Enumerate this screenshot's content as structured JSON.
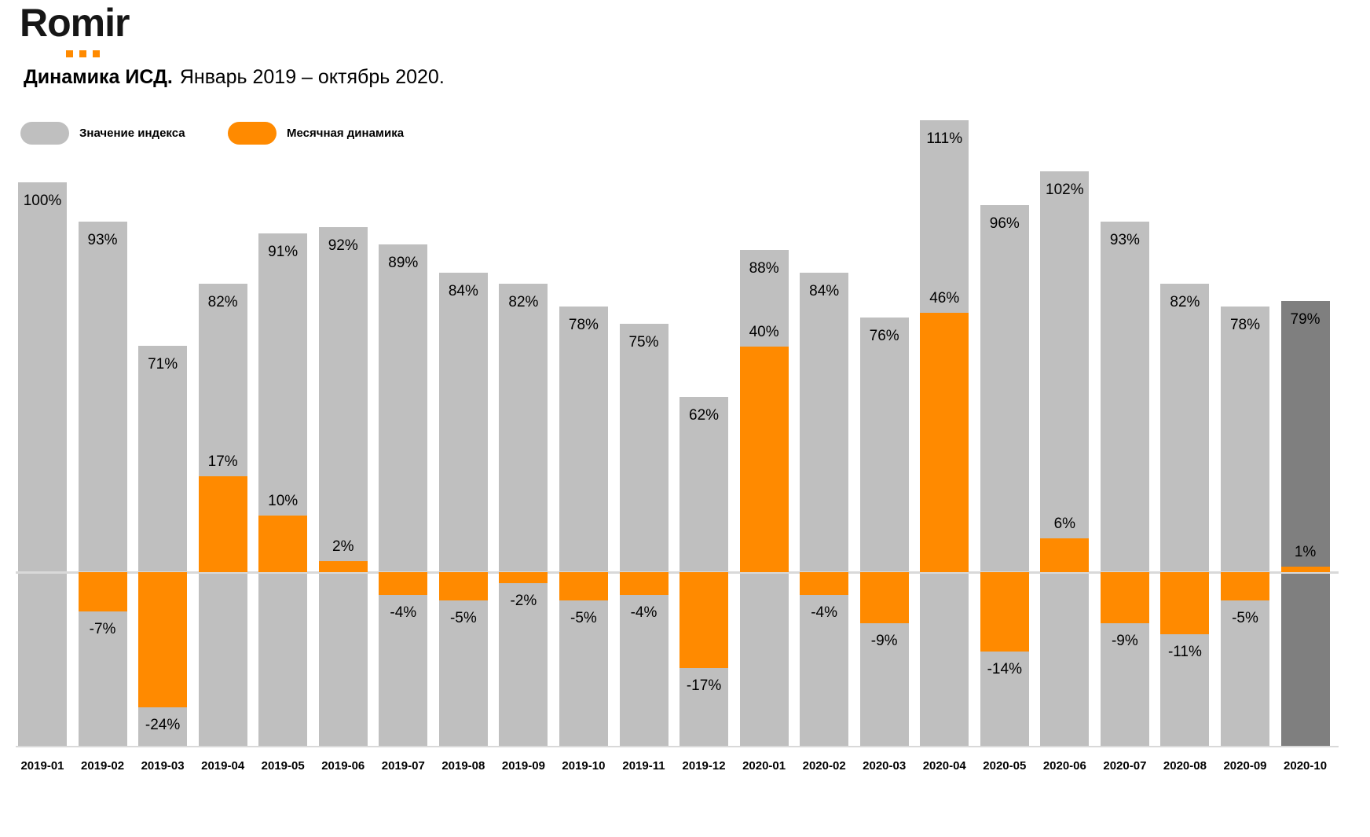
{
  "logo": {
    "text": "Romir"
  },
  "title": {
    "bold": "Динамика ИСД.",
    "regular": "Январь 2019 – октябрь 2020."
  },
  "legend": [
    {
      "label": "Значение индекса",
      "color": "#BFBFBF"
    },
    {
      "label": "Месячная динамика",
      "color": "#FF8A00"
    }
  ],
  "colors": {
    "bar_gray": "#BFBFBF",
    "bar_dark_highlight": "#7F7F7F",
    "bar_orange": "#FF8A00",
    "reference_line": "#D9D9D9",
    "label_text": "#000000"
  },
  "chart_data": {
    "type": "bar",
    "title": "Динамика ИСД. Январь 2019 – октябрь 2020.",
    "legend_position": "top-left",
    "grid": false,
    "y_axis_visible": false,
    "categories": [
      "2019-01",
      "2019-02",
      "2019-03",
      "2019-04",
      "2019-05",
      "2019-06",
      "2019-07",
      "2019-08",
      "2019-09",
      "2019-10",
      "2019-11",
      "2019-12",
      "2020-01",
      "2020-02",
      "2020-03",
      "2020-04",
      "2020-05",
      "2020-06",
      "2020-07",
      "2020-08",
      "2020-09",
      "2020-10"
    ],
    "series": [
      {
        "name": "Значение индекса",
        "unit": "%",
        "values": [
          100,
          93,
          71,
          82,
          91,
          92,
          89,
          84,
          82,
          78,
          75,
          62,
          88,
          84,
          76,
          111,
          96,
          102,
          93,
          82,
          78,
          79
        ],
        "labels": [
          "100%",
          "93%",
          "71%",
          "82%",
          "91%",
          "92%",
          "89%",
          "84%",
          "82%",
          "78%",
          "75%",
          "62%",
          "88%",
          "84%",
          "76%",
          "111%",
          "96%",
          "102%",
          "93%",
          "82%",
          "78%",
          "79%"
        ]
      },
      {
        "name": "Месячная динамика",
        "unit": "%",
        "values": [
          null,
          -7,
          -24,
          17,
          10,
          2,
          -4,
          -5,
          -2,
          -5,
          -4,
          -17,
          40,
          -4,
          -9,
          46,
          -14,
          6,
          -9,
          -11,
          -5,
          1
        ],
        "labels": [
          null,
          "-7%",
          "-24%",
          "17%",
          "10%",
          "2%",
          "-4%",
          "-5%",
          "-2%",
          "-5%",
          "-4%",
          "-17%",
          "40%",
          "-4%",
          "-9%",
          "46%",
          "-14%",
          "6%",
          "-9%",
          "-11%",
          "-5%",
          "1%"
        ]
      }
    ],
    "highlight": {
      "category": "2020-10",
      "bar_color": "#7F7F7F"
    }
  }
}
